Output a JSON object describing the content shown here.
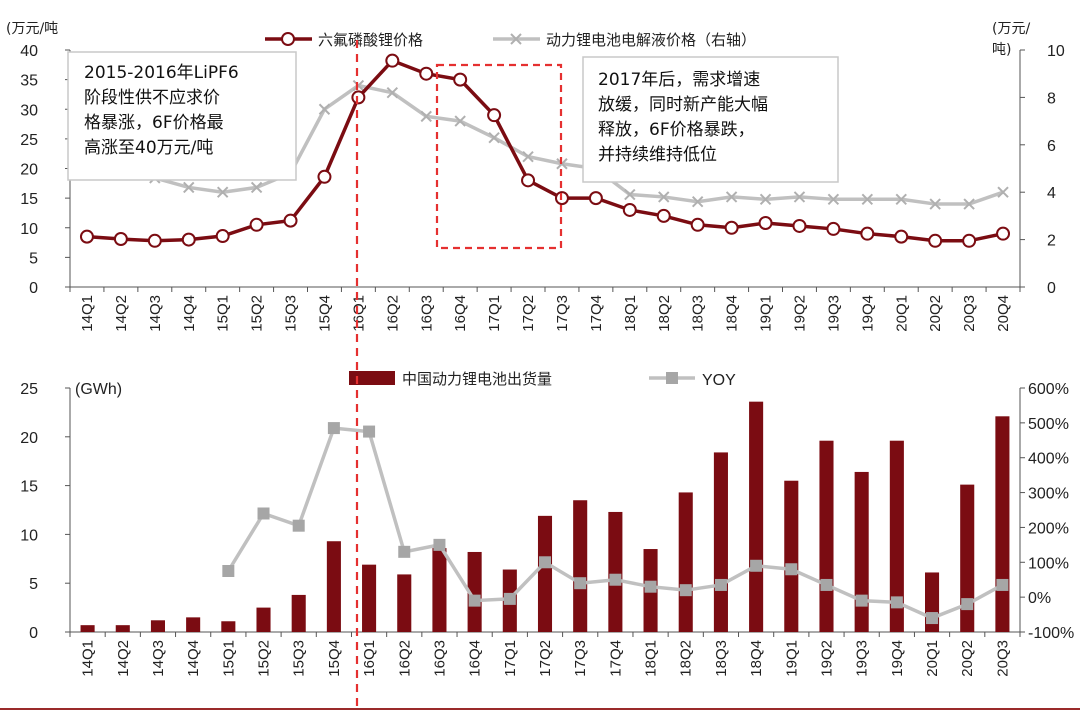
{
  "colors": {
    "primary": "#7b0c12",
    "secondary": "#c0c0c0",
    "highlight": "#e53030",
    "axis": "#555555"
  },
  "chart_data": [
    {
      "type": "line",
      "categories": [
        "14Q1",
        "14Q2",
        "14Q3",
        "14Q4",
        "15Q1",
        "15Q2",
        "15Q3",
        "15Q4",
        "16Q1",
        "16Q2",
        "16Q3",
        "16Q4",
        "17Q1",
        "17Q2",
        "17Q3",
        "17Q4",
        "18Q1",
        "18Q2",
        "18Q3",
        "18Q4",
        "19Q1",
        "19Q2",
        "19Q3",
        "19Q4",
        "20Q1",
        "20Q2",
        "20Q3",
        "20Q4"
      ],
      "left_unit": "(万元/吨",
      "right_unit_line1": "(万元/",
      "right_unit_line2": "吨)",
      "ylim_left": [
        0,
        40
      ],
      "ylim_right": [
        0,
        10
      ],
      "yticks_left": [
        "0",
        "5",
        "10",
        "15",
        "20",
        "25",
        "30",
        "35",
        "40"
      ],
      "yticks_right": [
        "0",
        "2",
        "4",
        "6",
        "8",
        "10"
      ],
      "series": [
        {
          "name": "六氟磷酸锂价格",
          "axis": "left",
          "values": [
            8.5,
            8.1,
            7.8,
            8.0,
            8.6,
            10.5,
            11.2,
            18.6,
            32.0,
            38.2,
            36.0,
            35.0,
            29.0,
            18.0,
            15.0,
            15.0,
            13.0,
            12.0,
            10.5,
            10.0,
            10.8,
            10.3,
            9.8,
            9.0,
            8.5,
            7.8,
            7.8,
            9.0
          ]
        },
        {
          "name": "动力锂电池电解液价格（右轴）",
          "axis": "right",
          "values": [
            5.4,
            5.2,
            4.6,
            4.2,
            4.0,
            4.2,
            4.8,
            7.5,
            8.5,
            8.2,
            7.2,
            7.0,
            6.3,
            5.5,
            5.2,
            5.0,
            3.9,
            3.8,
            3.6,
            3.8,
            3.7,
            3.8,
            3.7,
            3.7,
            3.7,
            3.5,
            3.5,
            4.0
          ]
        }
      ],
      "annotations": [
        {
          "lines": [
            "2015-2016年LiPF6",
            "阶段性供不应求价",
            "格暴涨，6F价格最",
            "高涨至40万元/吨"
          ]
        },
        {
          "lines": [
            "2017年后，需求增速",
            "放缓，同时新产能大幅",
            "释放，6F价格暴跌，",
            "并持续维持低位"
          ]
        }
      ]
    },
    {
      "type": "bar",
      "categories": [
        "14Q1",
        "14Q2",
        "14Q3",
        "14Q4",
        "15Q1",
        "15Q2",
        "15Q3",
        "15Q4",
        "16Q1",
        "16Q2",
        "16Q3",
        "16Q4",
        "17Q1",
        "17Q2",
        "17Q3",
        "17Q4",
        "18Q1",
        "18Q2",
        "18Q3",
        "18Q4",
        "19Q1",
        "19Q2",
        "19Q3",
        "19Q4",
        "20Q1",
        "20Q2",
        "20Q3"
      ],
      "left_unit": "(GWh)",
      "ylim_left": [
        0,
        25
      ],
      "ylim_right": [
        -100,
        600
      ],
      "yticks_left": [
        "0",
        "5",
        "10",
        "15",
        "20",
        "25"
      ],
      "yticks_right": [
        "-100%",
        "0%",
        "100%",
        "200%",
        "300%",
        "400%",
        "500%",
        "600%"
      ],
      "series": [
        {
          "name": "中国动力锂电池出货量",
          "axis": "left",
          "values": [
            0.7,
            0.7,
            1.2,
            1.5,
            1.1,
            2.5,
            3.8,
            9.3,
            6.9,
            5.9,
            8.6,
            8.2,
            6.4,
            11.9,
            13.5,
            12.3,
            8.5,
            14.3,
            18.4,
            23.6,
            15.5,
            19.6,
            16.4,
            19.6,
            6.1,
            15.1,
            22.1
          ]
        },
        {
          "name": "YOY",
          "axis": "right",
          "values": [
            null,
            null,
            null,
            null,
            75,
            240,
            205,
            485,
            475,
            130,
            150,
            -10,
            -5,
            100,
            40,
            50,
            30,
            20,
            35,
            90,
            80,
            35,
            -10,
            -15,
            -60,
            -20,
            35
          ]
        }
      ]
    }
  ]
}
